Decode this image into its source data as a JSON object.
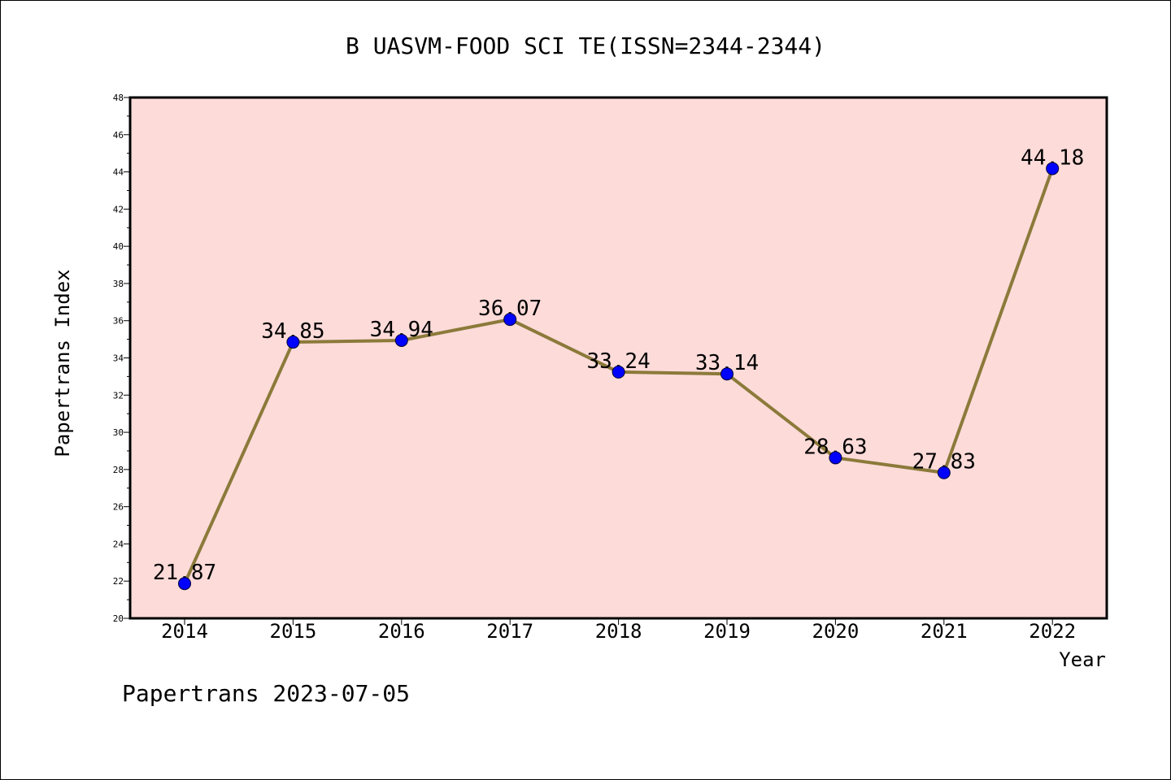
{
  "chart_data": {
    "type": "line",
    "title": "B UASVM-FOOD SCI TE(ISSN=2344-2344)",
    "xlabel": "Year",
    "ylabel": "Papertrans Index",
    "categories": [
      "2014",
      "2015",
      "2016",
      "2017",
      "2018",
      "2019",
      "2020",
      "2021",
      "2022"
    ],
    "series": [
      {
        "values": [
          21.87,
          34.85,
          34.94,
          36.07,
          33.24,
          33.14,
          28.63,
          27.83,
          44.18
        ]
      }
    ],
    "data_labels": [
      "21.87",
      "34.85",
      "34.94",
      "36.07",
      "33.24",
      "33.14",
      "28.63",
      "27.83",
      "44.18"
    ],
    "ylim": [
      20,
      48
    ],
    "y_ticks": [
      "20",
      "22",
      "24",
      "26",
      "28",
      "30",
      "32",
      "34",
      "36",
      "38",
      "40",
      "42",
      "44",
      "46",
      "48"
    ],
    "grid": false,
    "colors": {
      "plot_background": "#fddbd9",
      "line": "#8b7a3a",
      "marker": "#0000ff"
    }
  },
  "footer": "Papertrans 2023-07-05"
}
